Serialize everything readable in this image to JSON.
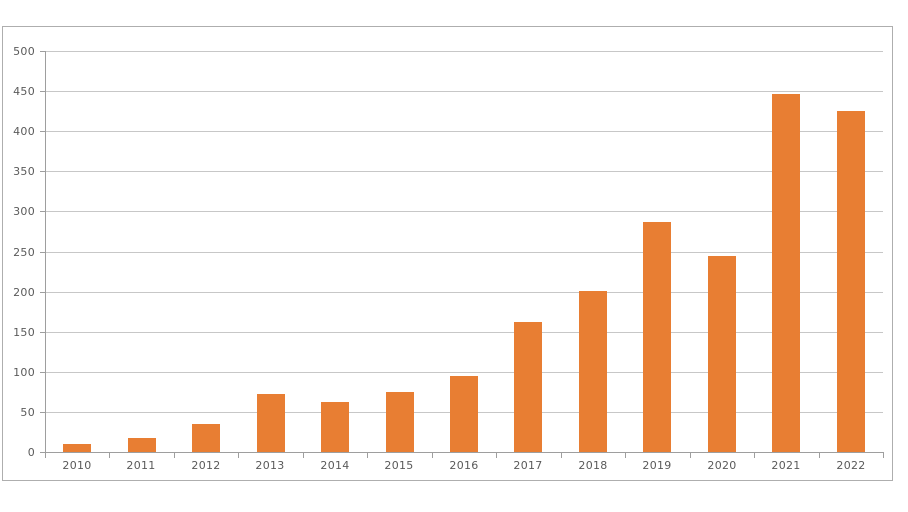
{
  "page": {
    "background": "#ffffff"
  },
  "chart": {
    "bar_color": "#e87e33",
    "gridline_color": "#c7c7c7",
    "axis_color": "#9e9e9e",
    "frame_border_color": "#aeaeae",
    "label_color": "#5a5a5a"
  },
  "chart_data": {
    "type": "bar",
    "title": "",
    "xlabel": "",
    "ylabel": "",
    "categories": [
      "2010",
      "2011",
      "2012",
      "2013",
      "2014",
      "2015",
      "2016",
      "2017",
      "2018",
      "2019",
      "2020",
      "2021",
      "2022"
    ],
    "values": [
      10,
      18,
      35,
      72,
      62,
      75,
      95,
      162,
      201,
      287,
      245,
      447,
      425
    ],
    "ylim": [
      0,
      500
    ],
    "ytick_step": 50,
    "ytick_labels": [
      "0",
      "50",
      "100",
      "150",
      "200",
      "250",
      "300",
      "350",
      "400",
      "450",
      "500"
    ],
    "grid": true,
    "legend": false
  }
}
